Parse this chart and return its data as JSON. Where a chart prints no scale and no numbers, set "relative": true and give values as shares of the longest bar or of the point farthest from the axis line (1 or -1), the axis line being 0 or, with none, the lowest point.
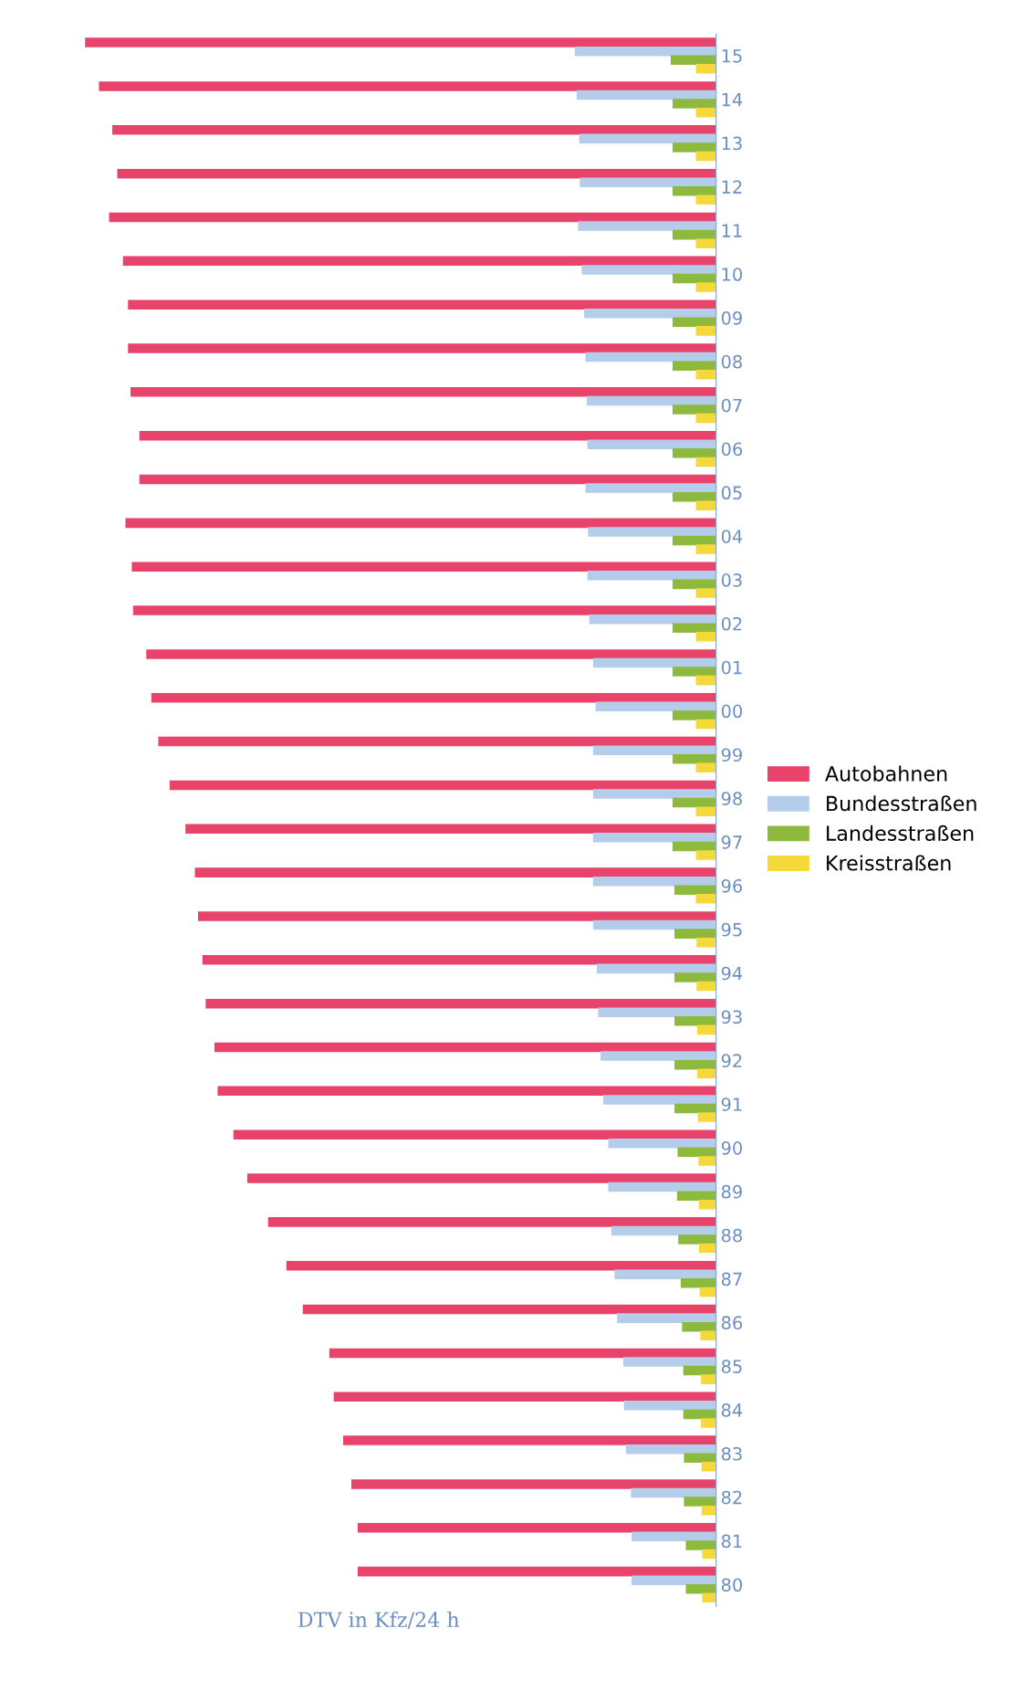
{
  "chart_data": {
    "type": "bar",
    "orientation": "horizontal",
    "relative": true,
    "xlabel": "DTV in Kfz/24 h",
    "categories": [
      "15",
      "14",
      "13",
      "12",
      "11",
      "10",
      "09",
      "08",
      "07",
      "06",
      "05",
      "04",
      "03",
      "02",
      "01",
      "00",
      "99",
      "98",
      "97",
      "96",
      "95",
      "94",
      "93",
      "92",
      "91",
      "90",
      "89",
      "88",
      "87",
      "86",
      "85",
      "84",
      "83",
      "82",
      "81",
      "80"
    ],
    "series": [
      {
        "name": "Autobahnen",
        "color": "#e8436a",
        "values": [
          1.0,
          0.978,
          0.957,
          0.949,
          0.962,
          0.94,
          0.932,
          0.932,
          0.928,
          0.914,
          0.914,
          0.936,
          0.926,
          0.924,
          0.903,
          0.895,
          0.884,
          0.866,
          0.841,
          0.826,
          0.821,
          0.814,
          0.809,
          0.795,
          0.79,
          0.765,
          0.743,
          0.71,
          0.681,
          0.655,
          0.613,
          0.606,
          0.591,
          0.578,
          0.568,
          0.568
        ]
      },
      {
        "name": "Bundesstraßen",
        "color": "#b4cdea",
        "values": [
          0.224,
          0.221,
          0.217,
          0.216,
          0.219,
          0.213,
          0.209,
          0.207,
          0.205,
          0.204,
          0.207,
          0.203,
          0.204,
          0.201,
          0.195,
          0.191,
          0.195,
          0.195,
          0.195,
          0.195,
          0.195,
          0.189,
          0.187,
          0.183,
          0.179,
          0.171,
          0.171,
          0.166,
          0.161,
          0.157,
          0.147,
          0.146,
          0.143,
          0.135,
          0.134,
          0.134
        ]
      },
      {
        "name": "Landesstraßen",
        "color": "#8dba3c",
        "values": [
          0.072,
          0.069,
          0.069,
          0.069,
          0.069,
          0.069,
          0.069,
          0.069,
          0.069,
          0.069,
          0.069,
          0.069,
          0.069,
          0.069,
          0.069,
          0.069,
          0.069,
          0.069,
          0.069,
          0.066,
          0.066,
          0.066,
          0.066,
          0.066,
          0.066,
          0.061,
          0.062,
          0.06,
          0.056,
          0.054,
          0.052,
          0.052,
          0.051,
          0.051,
          0.048,
          0.048
        ]
      },
      {
        "name": "Kreisstraßen",
        "color": "#f5d93a",
        "values": [
          0.032,
          0.032,
          0.032,
          0.032,
          0.032,
          0.032,
          0.032,
          0.032,
          0.032,
          0.032,
          0.032,
          0.032,
          0.032,
          0.032,
          0.032,
          0.032,
          0.032,
          0.032,
          0.032,
          0.032,
          0.031,
          0.031,
          0.03,
          0.03,
          0.029,
          0.028,
          0.027,
          0.027,
          0.026,
          0.025,
          0.024,
          0.024,
          0.023,
          0.023,
          0.022,
          0.022
        ]
      }
    ],
    "legend": "right"
  }
}
